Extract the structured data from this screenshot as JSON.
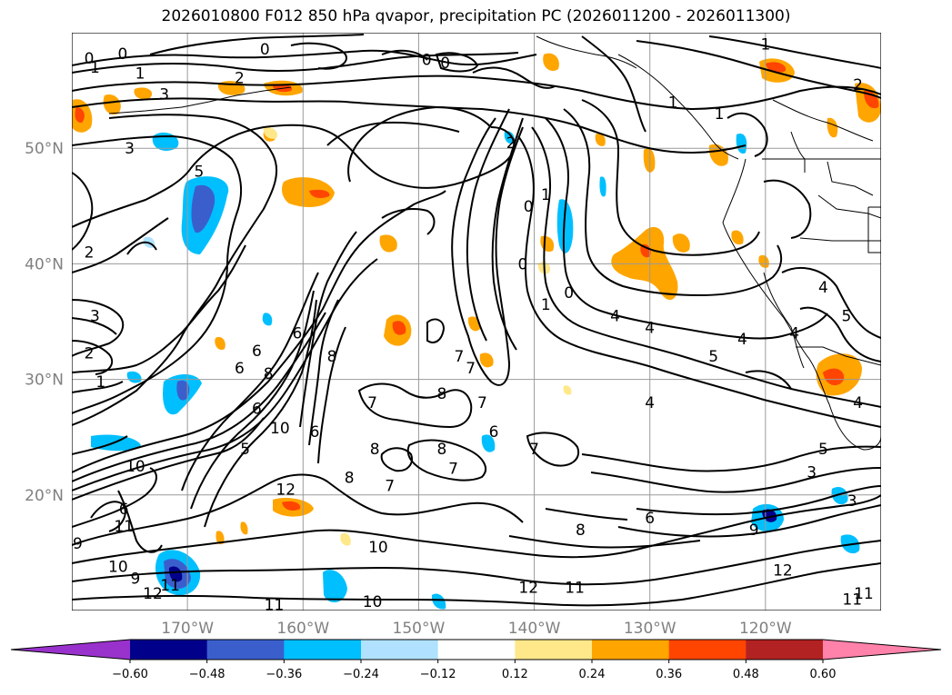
{
  "chart_data": {
    "type": "heatmap",
    "title": "2026010800 F012 850 hPa qvapor, precipitation PC (2026011200 - 2026011300)",
    "map": {
      "lon_range": [
        -180,
        -110
      ],
      "lat_range": [
        10,
        60
      ],
      "lat_ticks": [
        {
          "value": 50,
          "label": "50°N"
        },
        {
          "value": 40,
          "label": "40°N"
        },
        {
          "value": 30,
          "label": "30°N"
        },
        {
          "value": 20,
          "label": "20°N"
        }
      ],
      "lon_ticks": [
        {
          "value": -170,
          "label": "170°W"
        },
        {
          "value": -160,
          "label": "160°W"
        },
        {
          "value": -150,
          "label": "150°W"
        },
        {
          "value": -140,
          "label": "140°W"
        },
        {
          "value": -130,
          "label": "130°W"
        },
        {
          "value": -120,
          "label": "120°W"
        }
      ],
      "grid": true
    },
    "colorbar": {
      "levels": [
        -0.6,
        -0.48,
        -0.36,
        -0.24,
        -0.12,
        0.12,
        0.24,
        0.36,
        0.48,
        0.6
      ],
      "tick_labels": [
        "−0.60",
        "−0.48",
        "−0.36",
        "−0.24",
        "−0.12",
        "0.12",
        "0.24",
        "0.36",
        "0.48",
        "0.60"
      ],
      "colors": [
        "#9932cc",
        "#00008b",
        "#3a5fcd",
        "#00bfff",
        "#b0e2ff",
        "#ffffff",
        "#ffe88a",
        "#ffa500",
        "#ff4500",
        "#b22222",
        "#ff82ab"
      ],
      "extend": "both"
    },
    "contour_labels": [
      {
        "lon": -178.5,
        "lat": 57.8,
        "text": "0"
      },
      {
        "lon": -175.6,
        "lat": 58.2,
        "text": "0"
      },
      {
        "lon": -163.3,
        "lat": 58.6,
        "text": "0"
      },
      {
        "lon": -149.3,
        "lat": 57.7,
        "text": "0"
      },
      {
        "lon": -147.7,
        "lat": 57.4,
        "text": "0"
      },
      {
        "lon": -178.0,
        "lat": 57.0,
        "text": "1"
      },
      {
        "lon": -174.1,
        "lat": 56.5,
        "text": "1"
      },
      {
        "lon": -165.5,
        "lat": 56.1,
        "text": "2"
      },
      {
        "lon": -172.0,
        "lat": 54.7,
        "text": "3"
      },
      {
        "lon": -175.0,
        "lat": 50.0,
        "text": "3"
      },
      {
        "lon": -169.0,
        "lat": 48.0,
        "text": "5"
      },
      {
        "lon": -178.5,
        "lat": 41.0,
        "text": "2"
      },
      {
        "lon": -178.0,
        "lat": 35.5,
        "text": "3"
      },
      {
        "lon": -178.5,
        "lat": 32.3,
        "text": "2"
      },
      {
        "lon": -177.5,
        "lat": 29.8,
        "text": "1"
      },
      {
        "lon": -160.5,
        "lat": 34.0,
        "text": "6"
      },
      {
        "lon": -164.0,
        "lat": 32.5,
        "text": "6"
      },
      {
        "lon": -165.5,
        "lat": 31.0,
        "text": "6"
      },
      {
        "lon": -163.0,
        "lat": 30.5,
        "text": "8"
      },
      {
        "lon": -164.0,
        "lat": 27.5,
        "text": "6"
      },
      {
        "lon": -162.0,
        "lat": 25.8,
        "text": "10"
      },
      {
        "lon": -165.0,
        "lat": 24.0,
        "text": "5"
      },
      {
        "lon": -174.5,
        "lat": 22.5,
        "text": "10"
      },
      {
        "lon": -175.5,
        "lat": 18.8,
        "text": "6"
      },
      {
        "lon": -175.5,
        "lat": 17.3,
        "text": "11"
      },
      {
        "lon": -179.5,
        "lat": 15.8,
        "text": "9"
      },
      {
        "lon": -176.0,
        "lat": 13.8,
        "text": "10"
      },
      {
        "lon": -174.5,
        "lat": 12.8,
        "text": "9"
      },
      {
        "lon": -173.0,
        "lat": 11.5,
        "text": "12"
      },
      {
        "lon": -171.5,
        "lat": 12.2,
        "text": "11"
      },
      {
        "lon": -162.5,
        "lat": 10.5,
        "text": "11"
      },
      {
        "lon": -161.5,
        "lat": 20.5,
        "text": "12"
      },
      {
        "lon": -156.0,
        "lat": 21.5,
        "text": "8"
      },
      {
        "lon": -152.5,
        "lat": 20.8,
        "text": "7"
      },
      {
        "lon": -153.5,
        "lat": 15.5,
        "text": "10"
      },
      {
        "lon": -154.0,
        "lat": 10.8,
        "text": "10"
      },
      {
        "lon": -153.8,
        "lat": 24.0,
        "text": "8"
      },
      {
        "lon": -154.0,
        "lat": 28.0,
        "text": "7"
      },
      {
        "lon": -148.0,
        "lat": 24.0,
        "text": "8"
      },
      {
        "lon": -147.0,
        "lat": 22.3,
        "text": "7"
      },
      {
        "lon": -157.5,
        "lat": 32.0,
        "text": "8"
      },
      {
        "lon": -159.0,
        "lat": 25.5,
        "text": "6"
      },
      {
        "lon": -148.0,
        "lat": 28.8,
        "text": "8"
      },
      {
        "lon": -144.5,
        "lat": 28.0,
        "text": "7"
      },
      {
        "lon": -143.5,
        "lat": 25.5,
        "text": "6"
      },
      {
        "lon": -146.5,
        "lat": 32.0,
        "text": "7"
      },
      {
        "lon": -145.5,
        "lat": 31.0,
        "text": "7"
      },
      {
        "lon": -140.0,
        "lat": 24.0,
        "text": "7"
      },
      {
        "lon": -142.0,
        "lat": 50.5,
        "text": "2"
      },
      {
        "lon": -139.0,
        "lat": 46.0,
        "text": "1"
      },
      {
        "lon": -140.5,
        "lat": 45.0,
        "text": "0"
      },
      {
        "lon": -141.0,
        "lat": 40.0,
        "text": "0"
      },
      {
        "lon": -137.0,
        "lat": 37.5,
        "text": "0"
      },
      {
        "lon": -139.0,
        "lat": 36.5,
        "text": "1"
      },
      {
        "lon": -133.0,
        "lat": 35.5,
        "text": "4"
      },
      {
        "lon": -130.0,
        "lat": 34.5,
        "text": "4"
      },
      {
        "lon": -130.0,
        "lat": 28.0,
        "text": "4"
      },
      {
        "lon": -130.0,
        "lat": 18.0,
        "text": "6"
      },
      {
        "lon": -136.0,
        "lat": 17.0,
        "text": "8"
      },
      {
        "lon": -121.0,
        "lat": 17.0,
        "text": "9"
      },
      {
        "lon": -118.5,
        "lat": 13.5,
        "text": "12"
      },
      {
        "lon": -140.5,
        "lat": 12.0,
        "text": "12"
      },
      {
        "lon": -136.5,
        "lat": 12.0,
        "text": "11"
      },
      {
        "lon": -120.0,
        "lat": 59.0,
        "text": "1"
      },
      {
        "lon": -112.0,
        "lat": 55.5,
        "text": "2"
      },
      {
        "lon": -128.0,
        "lat": 54.0,
        "text": "1"
      },
      {
        "lon": -124.0,
        "lat": 53.0,
        "text": "1"
      },
      {
        "lon": -115.0,
        "lat": 38.0,
        "text": "4"
      },
      {
        "lon": -117.5,
        "lat": 34.0,
        "text": "4"
      },
      {
        "lon": -122.0,
        "lat": 33.5,
        "text": "4"
      },
      {
        "lon": -124.5,
        "lat": 32.0,
        "text": "5"
      },
      {
        "lon": -113.0,
        "lat": 35.5,
        "text": "5"
      },
      {
        "lon": -112.0,
        "lat": 28.0,
        "text": "4"
      },
      {
        "lon": -115.0,
        "lat": 24.0,
        "text": "5"
      },
      {
        "lon": -116.0,
        "lat": 22.0,
        "text": "3"
      },
      {
        "lon": -112.5,
        "lat": 19.5,
        "text": "3"
      },
      {
        "lon": -112.5,
        "lat": 11.0,
        "text": "11"
      },
      {
        "lon": -111.5,
        "lat": 11.5,
        "text": "11"
      }
    ]
  }
}
